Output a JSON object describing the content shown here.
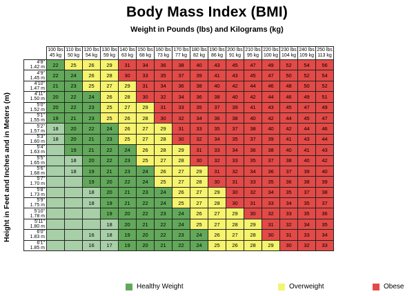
{
  "title": "Body Mass Index (BMI)",
  "subtitle": "Weight in Pounds (lbs) and Kilograms (kg)",
  "ylabel": "Height in Feet and Inches and in Meters (m)",
  "legend": [
    {
      "label": "Healthy Weight",
      "color": "#62a85a"
    },
    {
      "label": "Overweight",
      "color": "#f6f36e"
    },
    {
      "label": "Obese",
      "color": "#e34a47"
    }
  ],
  "colors": {
    "underweight": "#a8cfa8",
    "healthy": "#62a85a",
    "overweight": "#f6f36e",
    "obese": "#e34a47"
  },
  "chart_data": {
    "type": "heatmap",
    "title": "Body Mass Index (BMI)",
    "xlabel": "Weight in Pounds (lbs) and Kilograms (kg)",
    "ylabel": "Height in Feet and Inches and in Meters (m)",
    "columns": [
      {
        "lbs": "100 lbs",
        "kg": "45 kg"
      },
      {
        "lbs": "110 lbs",
        "kg": "50 kg"
      },
      {
        "lbs": "120 lbs",
        "kg": "54 kg"
      },
      {
        "lbs": "130 lbs",
        "kg": "59 kg"
      },
      {
        "lbs": "140 lbs",
        "kg": "63 kg"
      },
      {
        "lbs": "150 lbs",
        "kg": "68 kg"
      },
      {
        "lbs": "160 lbs",
        "kg": "73 kg"
      },
      {
        "lbs": "170 lbs",
        "kg": "77 kg"
      },
      {
        "lbs": "180 lbs",
        "kg": "82 kg"
      },
      {
        "lbs": "190 lbs",
        "kg": "86 kg"
      },
      {
        "lbs": "200 lbs",
        "kg": "91 kg"
      },
      {
        "lbs": "210 lbs",
        "kg": "95 kg"
      },
      {
        "lbs": "220 lbs",
        "kg": "100 kg"
      },
      {
        "lbs": "230 lbs",
        "kg": "104 kg"
      },
      {
        "lbs": "240 lbs",
        "kg": "109 kg"
      },
      {
        "lbs": "250 lbs",
        "kg": "113 kg"
      }
    ],
    "rows": [
      {
        "ft": "4'8\"",
        "m": "1.42 m",
        "values": [
          22,
          25,
          26,
          29,
          31,
          34,
          36,
          38,
          40,
          43,
          45,
          47,
          49,
          52,
          54,
          56
        ]
      },
      {
        "ft": "4'9\"",
        "m": "1.45 m",
        "values": [
          22,
          24,
          26,
          28,
          30,
          33,
          35,
          37,
          39,
          41,
          43,
          45,
          47,
          50,
          52,
          54
        ]
      },
      {
        "ft": "4'10\"",
        "m": "1.47 m",
        "values": [
          21,
          23,
          25,
          27,
          29,
          31,
          34,
          36,
          38,
          40,
          42,
          44,
          46,
          48,
          50,
          52
        ]
      },
      {
        "ft": "4'11\"",
        "m": "1.50 m",
        "values": [
          20,
          22,
          24,
          26,
          28,
          30,
          32,
          34,
          36,
          38,
          40,
          42,
          44,
          46,
          49,
          51
        ]
      },
      {
        "ft": "5'0\"",
        "m": "1.52 m",
        "values": [
          20,
          22,
          23,
          25,
          27,
          29,
          31,
          33,
          35,
          37,
          39,
          41,
          43,
          45,
          47,
          49
        ]
      },
      {
        "ft": "5'1\"",
        "m": "1.55 m",
        "values": [
          19,
          21,
          23,
          25,
          26,
          28,
          30,
          32,
          34,
          36,
          38,
          40,
          42,
          44,
          45,
          47
        ]
      },
      {
        "ft": "5'2\"",
        "m": "1.57 m",
        "values": [
          18,
          20,
          22,
          24,
          26,
          27,
          29,
          31,
          33,
          35,
          37,
          38,
          40,
          42,
          44,
          46
        ]
      },
      {
        "ft": "5'3\"",
        "m": "1.60 m",
        "values": [
          18,
          20,
          21,
          23,
          25,
          27,
          28,
          30,
          32,
          34,
          35,
          37,
          39,
          41,
          43,
          44
        ]
      },
      {
        "ft": "5'4\"",
        "m": "1.63 m",
        "values": [
          null,
          19,
          21,
          22,
          24,
          26,
          28,
          29,
          31,
          33,
          34,
          36,
          38,
          40,
          41,
          43
        ]
      },
      {
        "ft": "5'5\"",
        "m": "1.65 m",
        "values": [
          null,
          18,
          20,
          22,
          23,
          25,
          27,
          28,
          30,
          32,
          33,
          35,
          37,
          38,
          40,
          42
        ]
      },
      {
        "ft": "5'6\"",
        "m": "1.68 m",
        "values": [
          null,
          18,
          19,
          21,
          23,
          24,
          26,
          27,
          29,
          31,
          32,
          34,
          36,
          37,
          39,
          40
        ]
      },
      {
        "ft": "5'7\"",
        "m": "1.70 m",
        "values": [
          null,
          null,
          19,
          20,
          22,
          24,
          25,
          27,
          28,
          30,
          31,
          33,
          35,
          36,
          38,
          39
        ]
      },
      {
        "ft": "5'8\"",
        "m": "1.73 m",
        "values": [
          null,
          null,
          18,
          20,
          21,
          23,
          24,
          26,
          27,
          29,
          30,
          32,
          34,
          35,
          37,
          38
        ]
      },
      {
        "ft": "5'9\"",
        "m": "1.75 m",
        "values": [
          null,
          null,
          18,
          19,
          21,
          22,
          24,
          25,
          27,
          28,
          30,
          31,
          33,
          34,
          35,
          37
        ]
      },
      {
        "ft": "5'10\"",
        "m": "1.78 m",
        "values": [
          null,
          null,
          null,
          19,
          20,
          22,
          23,
          24,
          26,
          27,
          29,
          30,
          32,
          33,
          35,
          36
        ]
      },
      {
        "ft": "5'11\"",
        "m": "1.80 m",
        "values": [
          null,
          null,
          null,
          18,
          20,
          21,
          22,
          24,
          25,
          27,
          28,
          29,
          31,
          32,
          34,
          35
        ]
      },
      {
        "ft": "6'0\"",
        "m": "1.83 m",
        "values": [
          null,
          null,
          16,
          18,
          19,
          20,
          22,
          23,
          24,
          26,
          27,
          28,
          30,
          31,
          33,
          34
        ]
      },
      {
        "ft": "6'1\"",
        "m": "1.85 m",
        "values": [
          null,
          null,
          16,
          17,
          19,
          20,
          21,
          22,
          24,
          25,
          26,
          28,
          29,
          30,
          32,
          33
        ]
      }
    ]
  }
}
